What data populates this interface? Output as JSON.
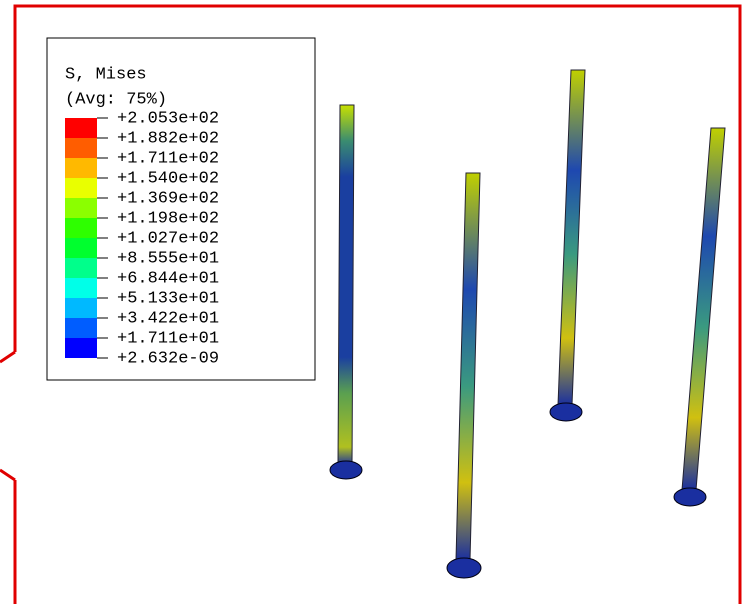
{
  "legend": {
    "title": "S, Mises",
    "subtitle": "(Avg: 75%)",
    "labels": [
      "+2.053e+02",
      "+1.882e+02",
      "+1.711e+02",
      "+1.540e+02",
      "+1.369e+02",
      "+1.198e+02",
      "+1.027e+02",
      "+8.555e+01",
      "+6.844e+01",
      "+5.133e+01",
      "+3.422e+01",
      "+1.711e+01",
      "+2.632e-09"
    ],
    "colors": [
      "#ff0000",
      "#ff5d00",
      "#ffb900",
      "#e9ff00",
      "#8bff00",
      "#2eff00",
      "#00ff2e",
      "#00ff8b",
      "#00ffe8",
      "#00b9ff",
      "#005dff",
      "#0000ff"
    ]
  }
}
